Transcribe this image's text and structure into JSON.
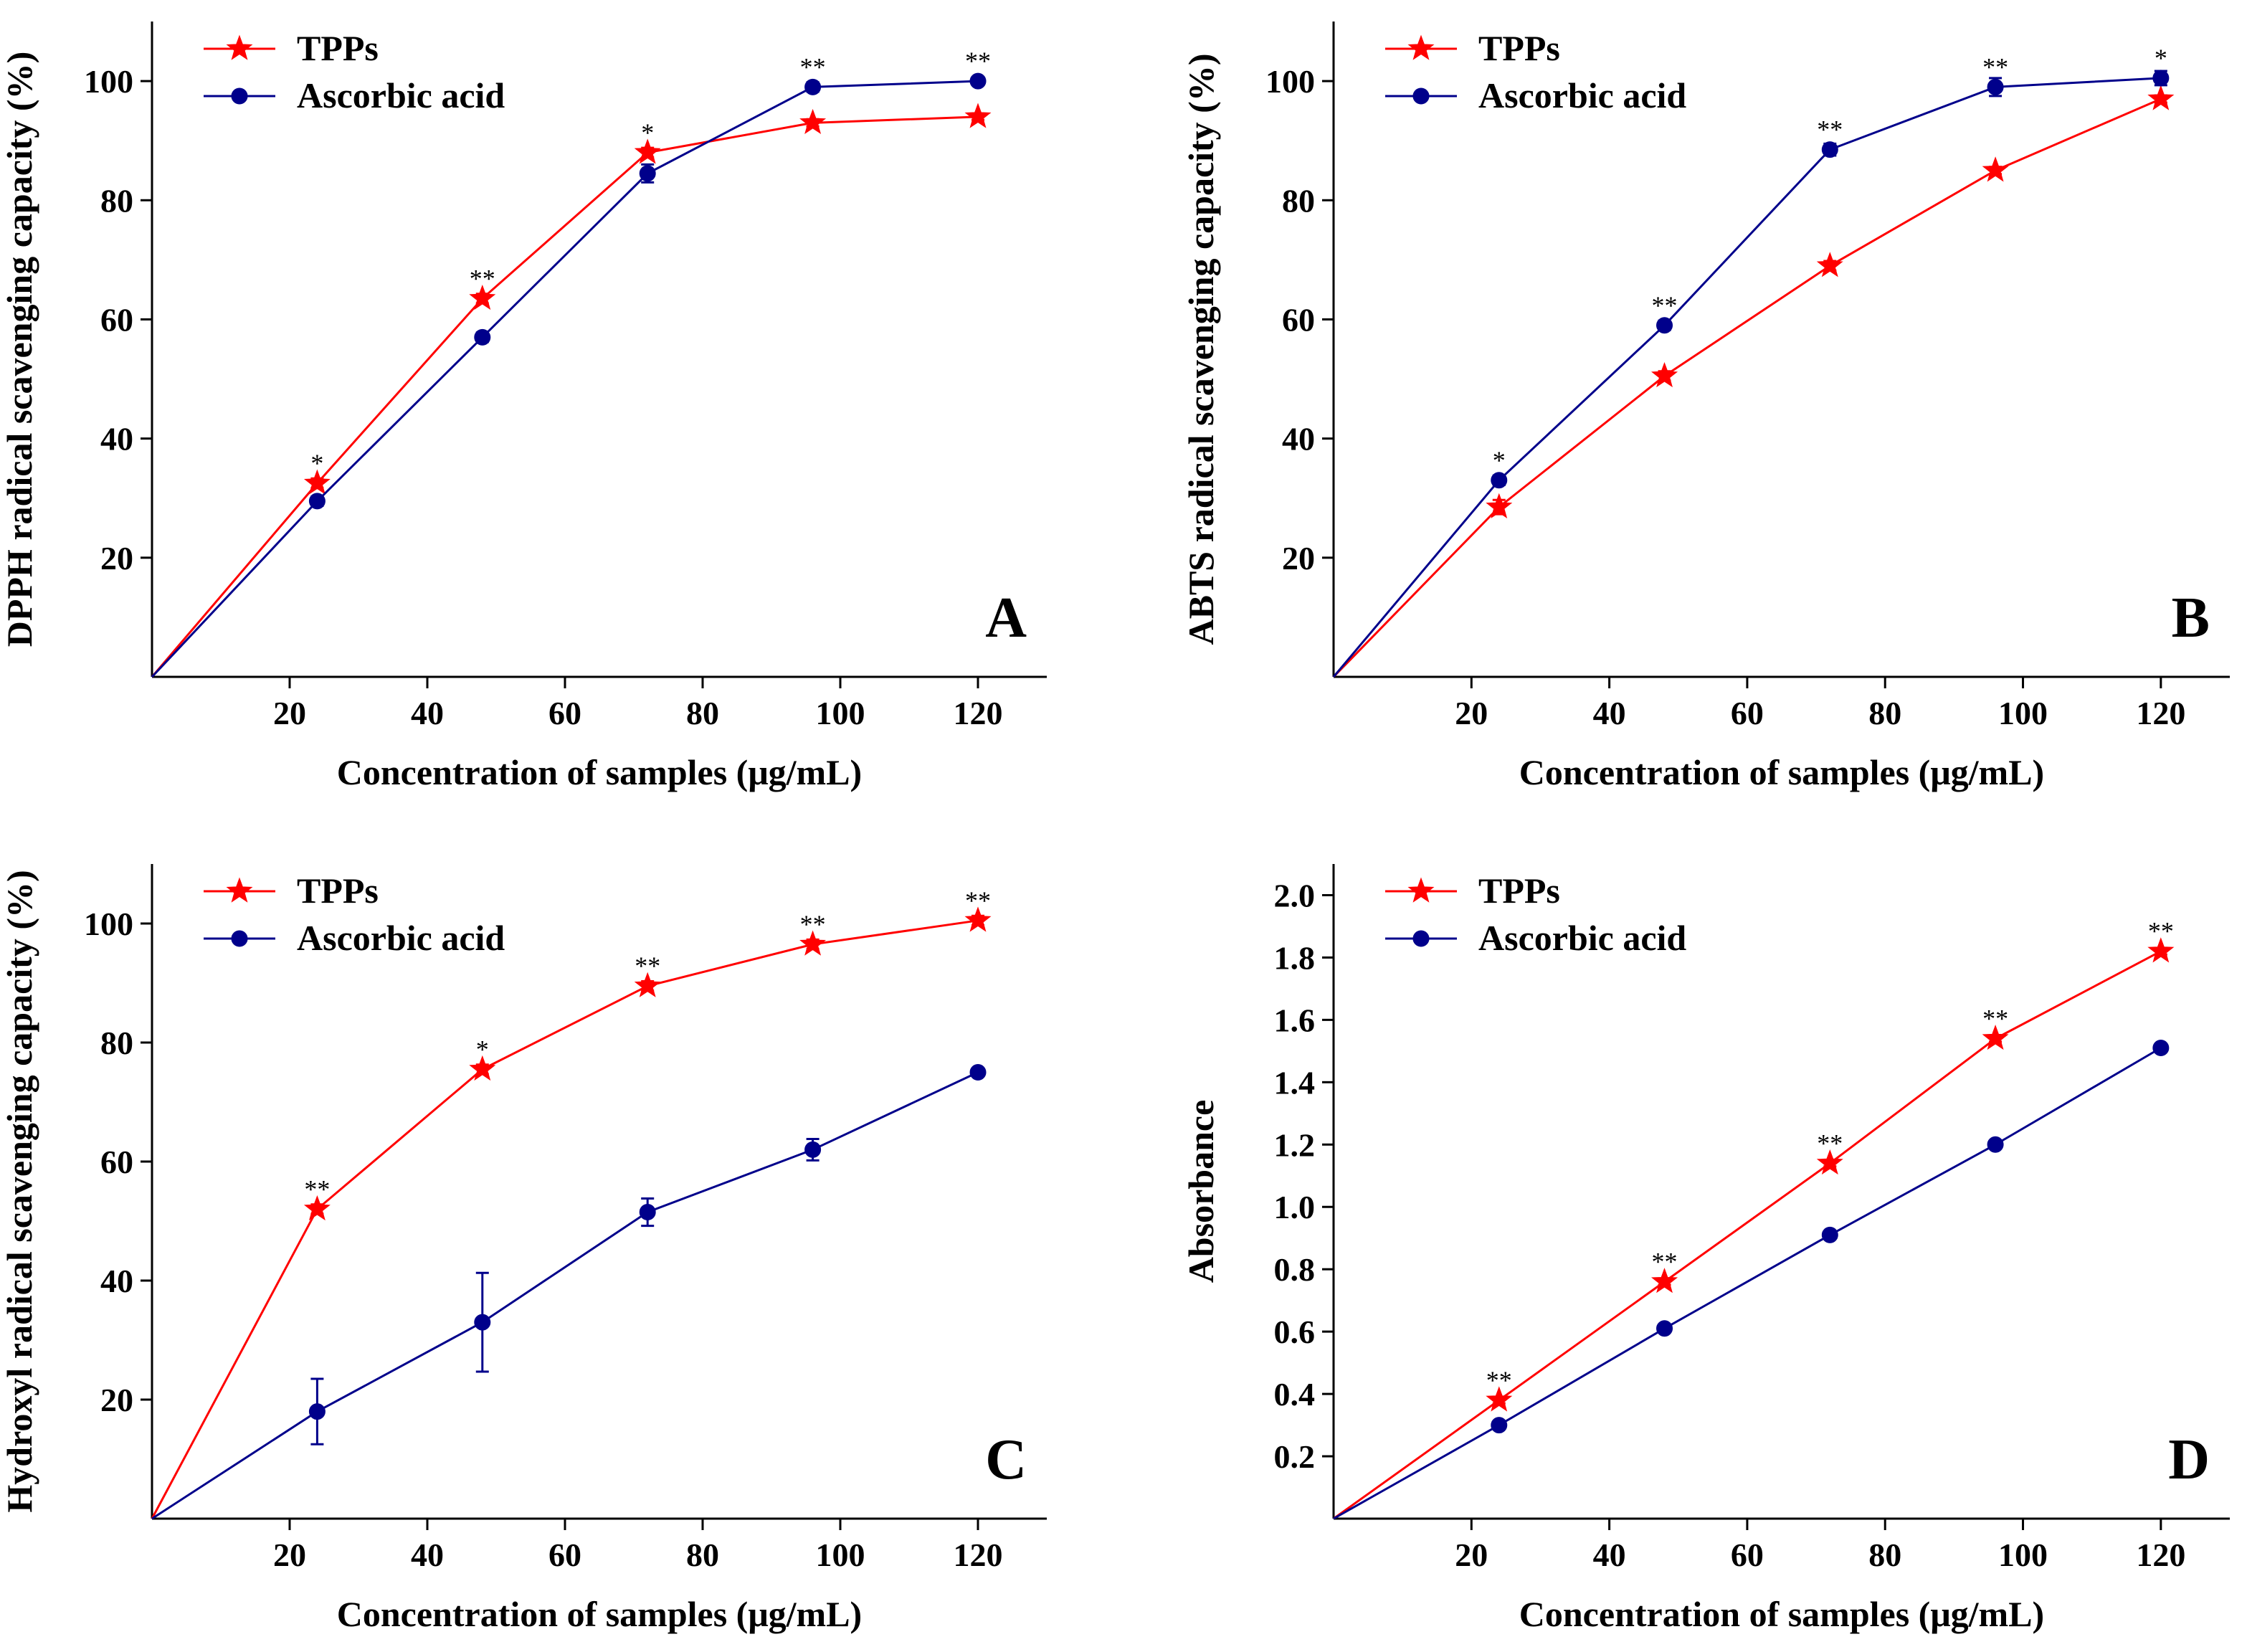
{
  "figure": {
    "colors": {
      "tpps": "#ff0000",
      "ascorbic": "#00008b",
      "axis": "#000000"
    }
  },
  "chart_data": [
    {
      "id": "A",
      "type": "line",
      "panel_label": "A",
      "title": "",
      "xlabel": "Concentration of samples (μg/mL)",
      "ylabel": "DPPH radical scavenging capacity (%)",
      "xlim": [
        0,
        130
      ],
      "ylim": [
        0,
        110
      ],
      "xticks": [
        20,
        40,
        60,
        80,
        100,
        120
      ],
      "xtick_labels": [
        "20",
        "40",
        "60",
        "80",
        "100",
        "120"
      ],
      "yticks": [
        20,
        40,
        60,
        80,
        100
      ],
      "ytick_labels": [
        "20",
        "40",
        "60",
        "80",
        "100"
      ],
      "legend": {
        "position": "top-left",
        "entries": [
          "TPPs",
          "Ascorbic acid"
        ]
      },
      "x": [
        0,
        24,
        48,
        72,
        96,
        120
      ],
      "series": [
        {
          "name": "TPPs",
          "marker": "star",
          "values": [
            0,
            32.5,
            63.5,
            88,
            93,
            94
          ],
          "errors": [
            0,
            0.8,
            0.8,
            0.8,
            0.6,
            0.5
          ]
        },
        {
          "name": "Ascorbic acid",
          "marker": "circle",
          "values": [
            0,
            29.5,
            57,
            84.5,
            99,
            100
          ],
          "errors": [
            0,
            0.8,
            0.8,
            1.5,
            0.8,
            0.5
          ]
        }
      ],
      "annotations": [
        {
          "x": 24,
          "y": 32.5,
          "text": "*"
        },
        {
          "x": 48,
          "y": 63.5,
          "text": "**"
        },
        {
          "x": 72,
          "y": 88,
          "text": "*"
        },
        {
          "x": 96,
          "y": 99,
          "text": "**"
        },
        {
          "x": 120,
          "y": 100,
          "text": "**"
        }
      ]
    },
    {
      "id": "B",
      "type": "line",
      "panel_label": "B",
      "title": "",
      "xlabel": "Concentration of samples (μg/mL)",
      "ylabel": "ABTS radical scavenging capacity (%)",
      "xlim": [
        0,
        130
      ],
      "ylim": [
        0,
        110
      ],
      "xticks": [
        20,
        40,
        60,
        80,
        100,
        120
      ],
      "xtick_labels": [
        "20",
        "40",
        "60",
        "80",
        "100",
        "120"
      ],
      "yticks": [
        20,
        40,
        60,
        80,
        100
      ],
      "ytick_labels": [
        "20",
        "40",
        "60",
        "80",
        "100"
      ],
      "legend": {
        "position": "top-left",
        "entries": [
          "TPPs",
          "Ascorbic acid"
        ]
      },
      "x": [
        0,
        24,
        48,
        72,
        96,
        120
      ],
      "series": [
        {
          "name": "TPPs",
          "marker": "star",
          "values": [
            0,
            28.5,
            50.5,
            69,
            85,
            97
          ],
          "errors": [
            0,
            1.2,
            0.8,
            0.8,
            0.6,
            0.6
          ]
        },
        {
          "name": "Ascorbic acid",
          "marker": "circle",
          "values": [
            0,
            33,
            59,
            88.5,
            99,
            100.5
          ],
          "errors": [
            0,
            0.8,
            0.8,
            1.0,
            1.5,
            1.2
          ]
        }
      ],
      "annotations": [
        {
          "x": 24,
          "y": 33,
          "text": "*"
        },
        {
          "x": 48,
          "y": 59,
          "text": "**"
        },
        {
          "x": 72,
          "y": 88.5,
          "text": "**"
        },
        {
          "x": 96,
          "y": 99,
          "text": "**"
        },
        {
          "x": 120,
          "y": 100.5,
          "text": "*"
        }
      ]
    },
    {
      "id": "C",
      "type": "line",
      "panel_label": "C",
      "title": "",
      "xlabel": "Concentration of samples (μg/mL)",
      "ylabel": "Hydroxyl radical scavenging capacity (%)",
      "xlim": [
        0,
        130
      ],
      "ylim": [
        0,
        110
      ],
      "xticks": [
        20,
        40,
        60,
        80,
        100,
        120
      ],
      "xtick_labels": [
        "20",
        "40",
        "60",
        "80",
        "100",
        "120"
      ],
      "yticks": [
        20,
        40,
        60,
        80,
        100
      ],
      "ytick_labels": [
        "20",
        "40",
        "60",
        "80",
        "100"
      ],
      "legend": {
        "position": "top-left",
        "entries": [
          "TPPs",
          "Ascorbic acid"
        ]
      },
      "x": [
        0,
        24,
        48,
        72,
        96,
        120
      ],
      "series": [
        {
          "name": "TPPs",
          "marker": "star",
          "values": [
            0,
            52,
            75.5,
            89.5,
            96.5,
            100.5
          ],
          "errors": [
            0,
            0.8,
            0.8,
            0.8,
            0.8,
            0.8
          ]
        },
        {
          "name": "Ascorbic acid",
          "marker": "circle",
          "values": [
            0,
            18,
            33,
            51.5,
            62,
            75
          ],
          "errors": [
            0,
            5.5,
            8.3,
            2.3,
            1.8,
            0.6
          ]
        }
      ],
      "annotations": [
        {
          "x": 24,
          "y": 52,
          "text": "**"
        },
        {
          "x": 48,
          "y": 75.5,
          "text": "*"
        },
        {
          "x": 72,
          "y": 89.5,
          "text": "**"
        },
        {
          "x": 96,
          "y": 96.5,
          "text": "**"
        },
        {
          "x": 120,
          "y": 100.5,
          "text": "**"
        }
      ]
    },
    {
      "id": "D",
      "type": "line",
      "panel_label": "D",
      "title": "",
      "xlabel": "Concentration of samples (μg/mL)",
      "ylabel": "Absorbance",
      "xlim": [
        0,
        130
      ],
      "ylim": [
        0,
        2.1
      ],
      "xticks": [
        20,
        40,
        60,
        80,
        100,
        120
      ],
      "xtick_labels": [
        "20",
        "40",
        "60",
        "80",
        "100",
        "120"
      ],
      "yticks": [
        0.2,
        0.4,
        0.6,
        0.8,
        1.0,
        1.2,
        1.4,
        1.6,
        1.8,
        2.0
      ],
      "ytick_labels": [
        "0.2",
        "0.4",
        "0.6",
        "0.8",
        "1.0",
        "1.2",
        "1.4",
        "1.6",
        "1.8",
        "2.0"
      ],
      "legend": {
        "position": "top-left",
        "entries": [
          "TPPs",
          "Ascorbic acid"
        ]
      },
      "x": [
        0,
        24,
        48,
        72,
        96,
        120
      ],
      "series": [
        {
          "name": "TPPs",
          "marker": "star",
          "values": [
            0,
            0.38,
            0.76,
            1.14,
            1.54,
            1.82
          ],
          "errors": [
            0,
            0.01,
            0.01,
            0.01,
            0.01,
            0.01
          ]
        },
        {
          "name": "Ascorbic acid",
          "marker": "circle",
          "values": [
            0,
            0.3,
            0.61,
            0.91,
            1.2,
            1.51
          ],
          "errors": [
            0,
            0.01,
            0.01,
            0.01,
            0.01,
            0.01
          ]
        }
      ],
      "annotations": [
        {
          "x": 24,
          "y": 0.38,
          "text": "**"
        },
        {
          "x": 48,
          "y": 0.76,
          "text": "**"
        },
        {
          "x": 72,
          "y": 1.14,
          "text": "**"
        },
        {
          "x": 96,
          "y": 1.54,
          "text": "**"
        },
        {
          "x": 120,
          "y": 1.82,
          "text": "**"
        }
      ]
    }
  ]
}
